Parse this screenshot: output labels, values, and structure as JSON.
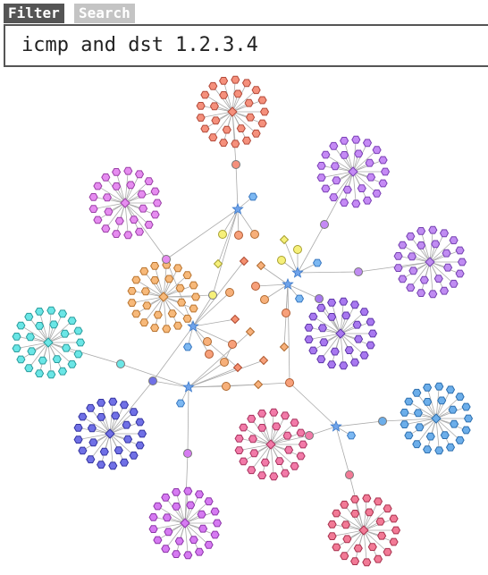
{
  "tabs": [
    "Filter",
    "Search"
  ],
  "filter": {
    "query": "icmp and dst 1.2.3.4"
  }
}
